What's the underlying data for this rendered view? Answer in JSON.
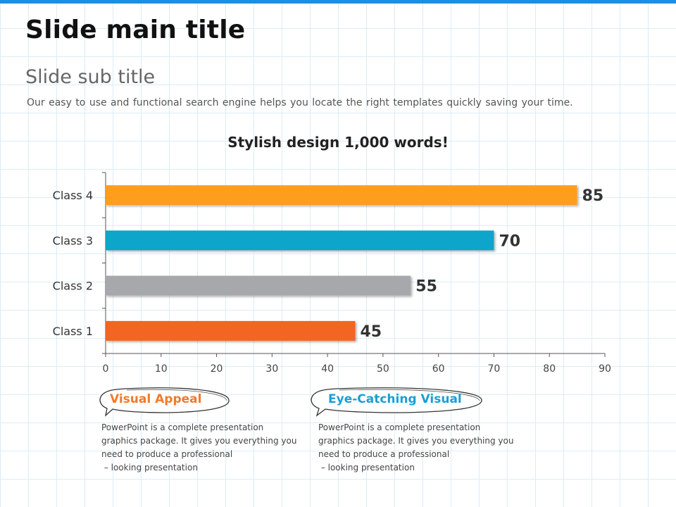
{
  "slide": {
    "title": "Slide main title",
    "subtitle": "Slide sub title",
    "description": "Our easy to use and functional  search engine helps you locate the right templates quickly  saving your time."
  },
  "chart_data": {
    "type": "bar",
    "orientation": "horizontal",
    "title": "Stylish design 1,000 words!",
    "categories": [
      "Class 1",
      "Class 2",
      "Class 3",
      "Class 4"
    ],
    "values": [
      45,
      55,
      70,
      85
    ],
    "colors": [
      "#f26522",
      "#a6a8ab",
      "#0ea5c9",
      "#ff9d1a"
    ],
    "xlim": [
      0,
      90
    ],
    "xticks": [
      0,
      10,
      20,
      30,
      40,
      50,
      60,
      70,
      80,
      90
    ],
    "grid": true,
    "legend": "none"
  },
  "callouts": [
    {
      "label": "Visual Appeal",
      "color": "#f07a2a",
      "text_lines": [
        "PowerPoint is a complete presentation",
        "graphics package. It gives you everything you",
        "need to produce a professional",
        " – looking presentation"
      ]
    },
    {
      "label": "Eye-Catching Visual",
      "color": "#1a9fd6",
      "text_lines": [
        "PowerPoint is a complete presentation",
        "graphics package. It gives you everything you",
        "need to produce a professional",
        " – looking presentation"
      ]
    }
  ]
}
